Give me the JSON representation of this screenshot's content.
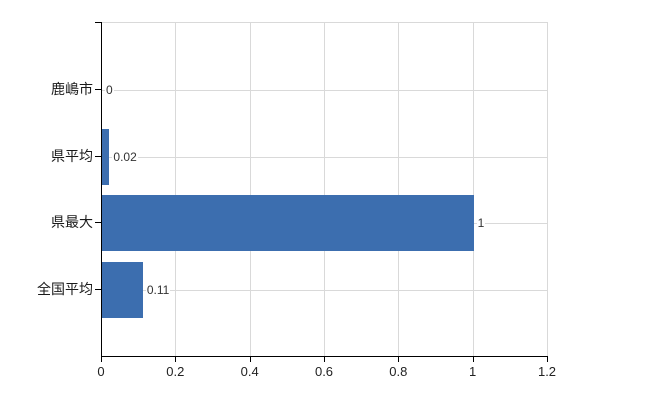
{
  "chart_data": {
    "type": "bar",
    "orientation": "horizontal",
    "title": "",
    "xlabel": "",
    "ylabel": "",
    "categories": [
      "鹿嶋市",
      "県平均",
      "県最大",
      "全国平均"
    ],
    "values": [
      0,
      0.02,
      1,
      0.11
    ],
    "value_labels": [
      "0",
      "0.02",
      "1",
      "0.11"
    ],
    "xlim": [
      0,
      1.2
    ],
    "x_ticks": [
      "0",
      "0.2",
      "0.4",
      "0.6",
      "0.8",
      "1",
      "1.2"
    ],
    "x_tick_values": [
      0,
      0.2,
      0.4,
      0.6,
      0.8,
      1,
      1.2
    ],
    "grid": true,
    "legend": "none",
    "colors": {
      "bar": "#3c6eaf",
      "grid": "#d9d9d9",
      "axis": "#000000",
      "label_text": "#333333",
      "background": "#ffffff"
    }
  }
}
